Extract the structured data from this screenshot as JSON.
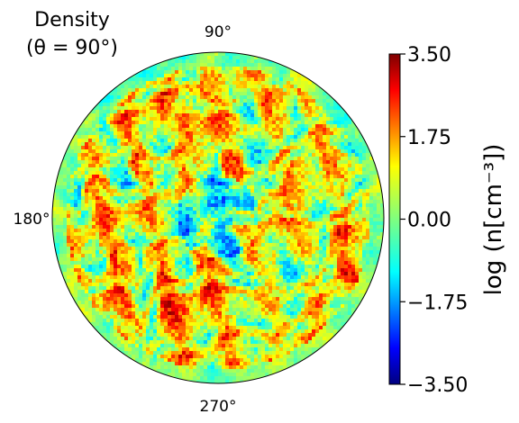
{
  "chart_data": {
    "type": "heatmap",
    "projection": "polar",
    "title_line1": "Density",
    "title_line2": "(θ = 90°)",
    "angle_labels": [
      {
        "name": "angle-label-90",
        "text": "90°"
      },
      {
        "name": "angle-label-180",
        "text": "180°"
      },
      {
        "name": "angle-label-270",
        "text": "270°"
      }
    ],
    "colorbar": {
      "label": "log (n[cm⁻³])",
      "colormap": "jet",
      "vmin": -3.5,
      "vmax": 3.5,
      "ticks": [
        {
          "value": 3.5,
          "label": "3.50"
        },
        {
          "value": 1.75,
          "label": "1.75"
        },
        {
          "value": 0.0,
          "label": "0.00"
        },
        {
          "value": -1.75,
          "label": "−1.75"
        },
        {
          "value": -3.5,
          "label": "−3.50"
        }
      ]
    },
    "field": {
      "background_value": -0.3,
      "typical_range": [
        -2.8,
        2.2
      ],
      "structure": "turbulent filamentary clumps; dense red filaments throughout the disk, lower-density blue voids concentrated near the center"
    }
  }
}
